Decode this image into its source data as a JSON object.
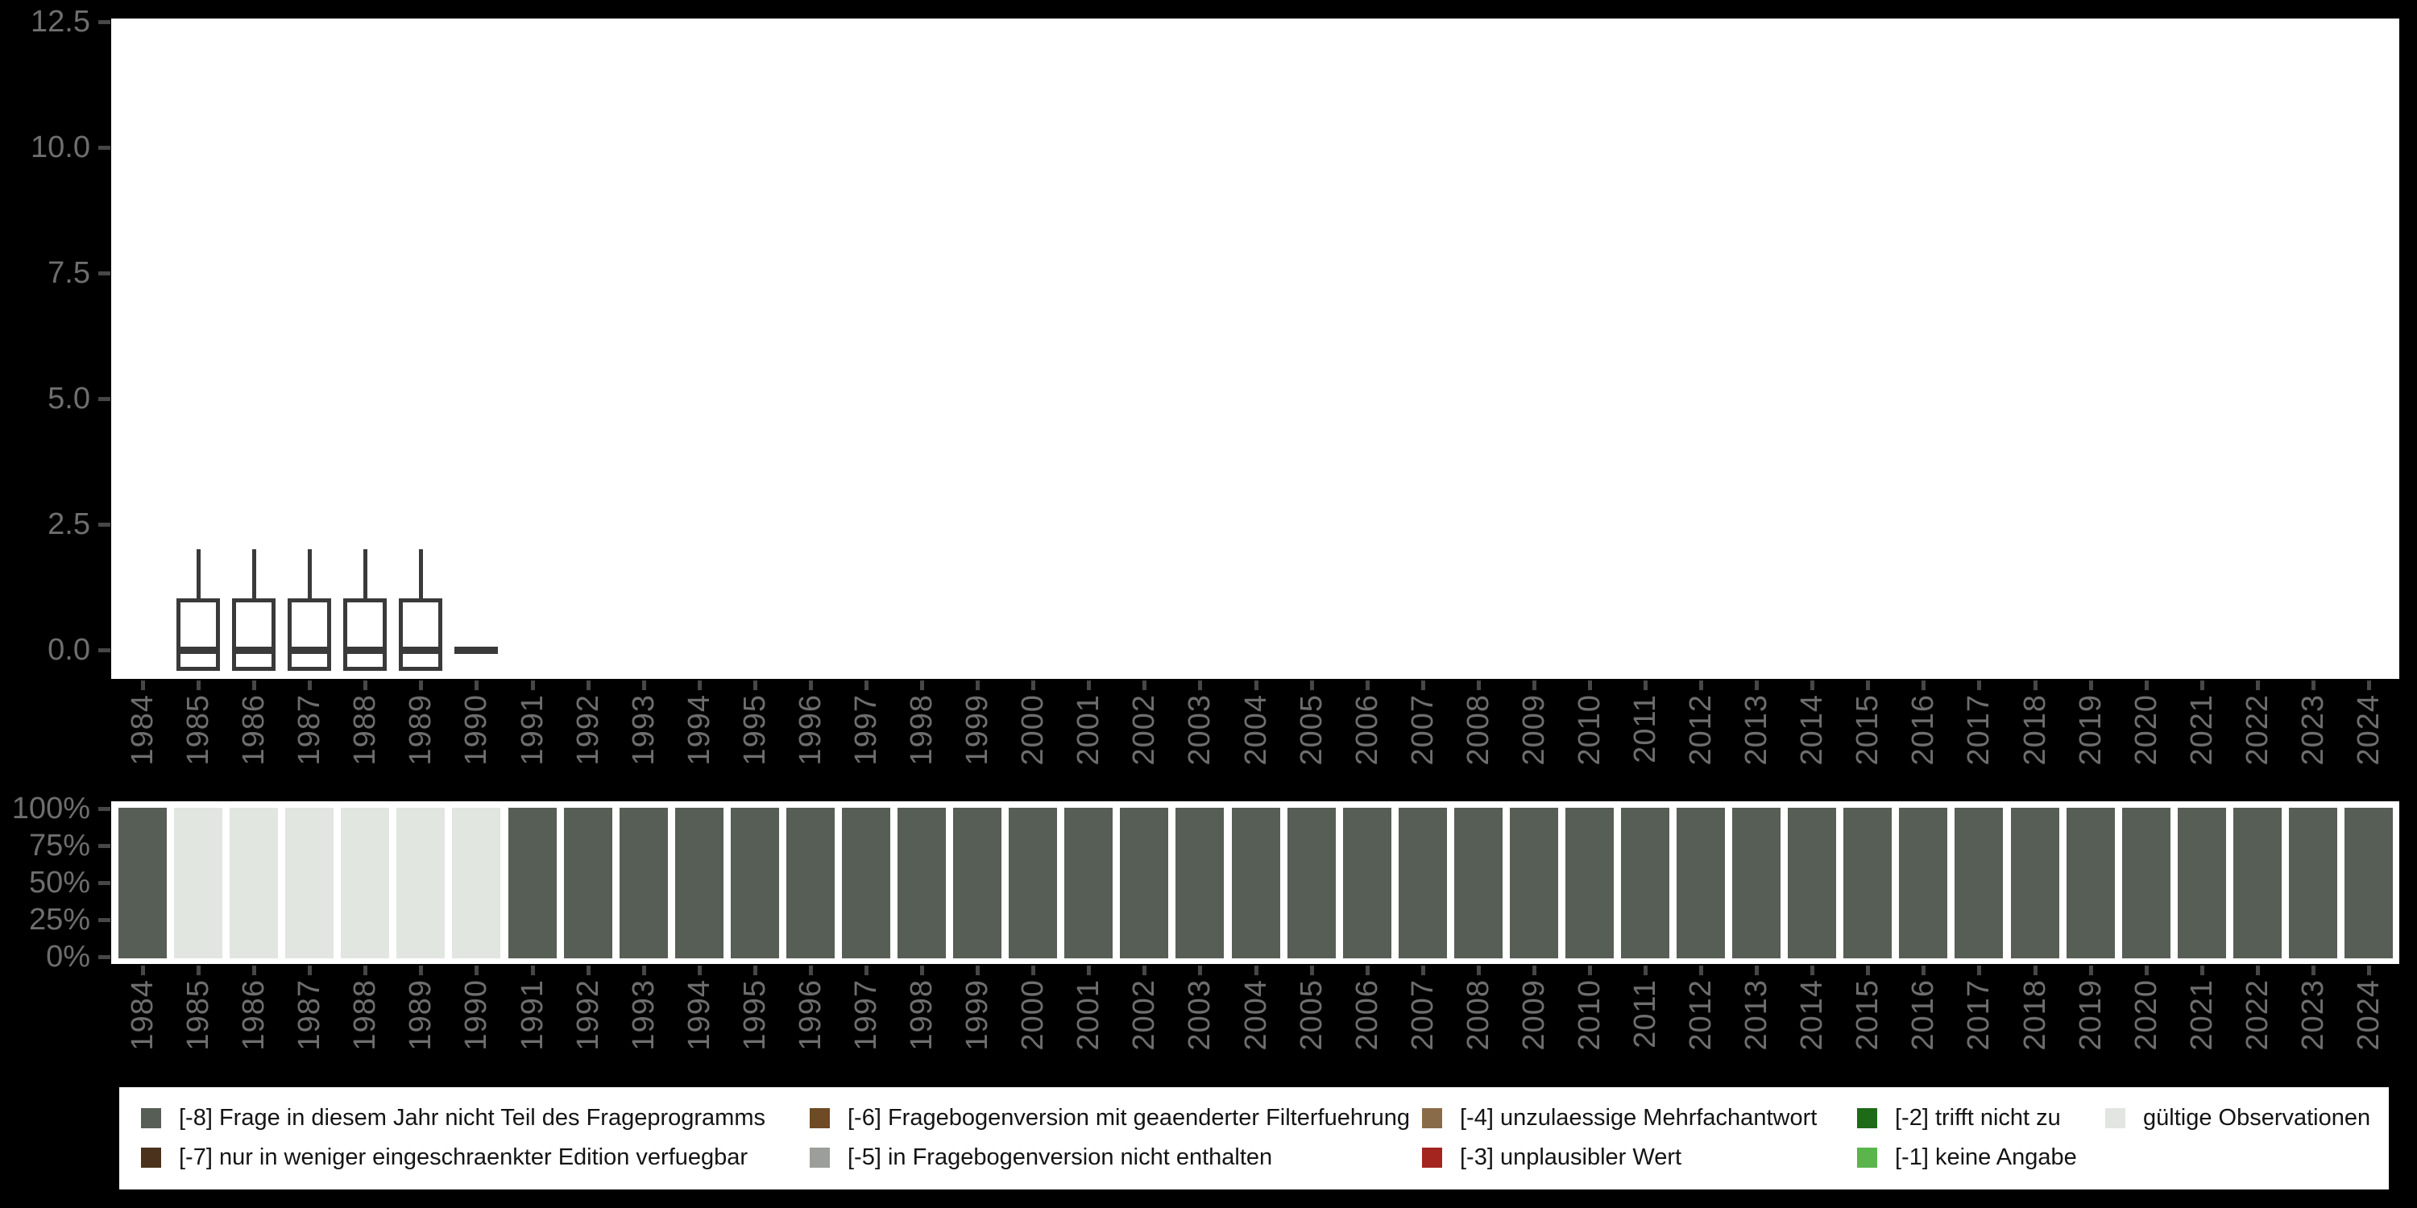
{
  "colors": {
    "page_bg": "#000000",
    "panel_bg": "#ffffff",
    "axis_text": "#6e6e6e",
    "tick_mark": "#474747",
    "box_outline": "#3a3a3a",
    "codes": {
      "-8": "#575E55",
      "-7": "#4A321C",
      "-6": "#6E4A25",
      "-5": "#9B9E99",
      "-4": "#8A6B49",
      "-3": "#A42420",
      "-2": "#1E6A18",
      "-1": "#5BB54D",
      "valid": "#E1E6E0"
    }
  },
  "chart_data": [
    {
      "type": "boxplot",
      "title": "",
      "categories": [
        "1984",
        "1985",
        "1986",
        "1987",
        "1988",
        "1989",
        "1990",
        "1991",
        "1992",
        "1993",
        "1994",
        "1995",
        "1996",
        "1997",
        "1998",
        "1999",
        "2000",
        "2001",
        "2002",
        "2003",
        "2004",
        "2005",
        "2006",
        "2007",
        "2008",
        "2009",
        "2010",
        "2011",
        "2012",
        "2013",
        "2014",
        "2015",
        "2016",
        "2017",
        "2018",
        "2019",
        "2020",
        "2021",
        "2022",
        "2023",
        "2024"
      ],
      "ylim": [
        0,
        12.5
      ],
      "ytick_labels": [
        "0.0",
        "2.5",
        "5.0",
        "7.5",
        "10.0",
        "12.5"
      ],
      "ytick_values": [
        0,
        2.5,
        5,
        7.5,
        10,
        12.5
      ],
      "grid": false,
      "boxes": [
        {
          "year": "1985",
          "min": 0,
          "q1": 0,
          "median": 0,
          "q3": 1,
          "max": 2
        },
        {
          "year": "1986",
          "min": 0,
          "q1": 0,
          "median": 0,
          "q3": 1,
          "max": 2
        },
        {
          "year": "1987",
          "min": 0,
          "q1": 0,
          "median": 0,
          "q3": 1,
          "max": 2
        },
        {
          "year": "1988",
          "min": 0,
          "q1": 0,
          "median": 0,
          "q3": 1,
          "max": 2
        },
        {
          "year": "1989",
          "min": 0,
          "q1": 0,
          "median": 0,
          "q3": 1,
          "max": 2
        },
        {
          "year": "1990",
          "min": 0,
          "q1": 0,
          "median": 0,
          "q3": 0,
          "max": 0
        }
      ]
    },
    {
      "type": "bar",
      "stacked": true,
      "percent_scale": true,
      "categories": [
        "1984",
        "1985",
        "1986",
        "1987",
        "1988",
        "1989",
        "1990",
        "1991",
        "1992",
        "1993",
        "1994",
        "1995",
        "1996",
        "1997",
        "1998",
        "1999",
        "2000",
        "2001",
        "2002",
        "2003",
        "2004",
        "2005",
        "2006",
        "2007",
        "2008",
        "2009",
        "2010",
        "2011",
        "2012",
        "2013",
        "2014",
        "2015",
        "2016",
        "2017",
        "2018",
        "2019",
        "2020",
        "2021",
        "2022",
        "2023",
        "2024"
      ],
      "codes": [
        "-8",
        "valid",
        "valid",
        "valid",
        "valid",
        "valid",
        "valid",
        "-8",
        "-8",
        "-8",
        "-8",
        "-8",
        "-8",
        "-8",
        "-8",
        "-8",
        "-8",
        "-8",
        "-8",
        "-8",
        "-8",
        "-8",
        "-8",
        "-8",
        "-8",
        "-8",
        "-8",
        "-8",
        "-8",
        "-8",
        "-8",
        "-8",
        "-8",
        "-8",
        "-8",
        "-8",
        "-8",
        "-8",
        "-8",
        "-8",
        "-8"
      ],
      "percent_each": 100,
      "ytick_labels": [
        "100%",
        "75%",
        "50%",
        "25%",
        "0%"
      ],
      "ytick_values": [
        100,
        75,
        50,
        25,
        0
      ],
      "legend_position": "bottom"
    }
  ],
  "legend": {
    "items": [
      {
        "key": "-8",
        "label": "[-8] Frage in diesem Jahr nicht Teil des Frageprogramms",
        "col": 0,
        "row": 0
      },
      {
        "key": "-7",
        "label": "[-7] nur in weniger eingeschraenkter Edition verfuegbar",
        "col": 0,
        "row": 1
      },
      {
        "key": "-6",
        "label": "[-6] Fragebogenversion mit geaenderter Filterfuehrung",
        "col": 1,
        "row": 0
      },
      {
        "key": "-5",
        "label": "[-5] in Fragebogenversion nicht enthalten",
        "col": 1,
        "row": 1
      },
      {
        "key": "-4",
        "label": "[-4] unzulaessige Mehrfachantwort",
        "col": 2,
        "row": 0
      },
      {
        "key": "-3",
        "label": "[-3] unplausibler Wert",
        "col": 2,
        "row": 1
      },
      {
        "key": "-2",
        "label": "[-2] trifft nicht zu",
        "col": 3,
        "row": 0
      },
      {
        "key": "-1",
        "label": "[-1] keine Angabe",
        "col": 3,
        "row": 1
      },
      {
        "key": "valid",
        "label": "gültige Observationen",
        "col": 4,
        "row": 0
      }
    ]
  }
}
